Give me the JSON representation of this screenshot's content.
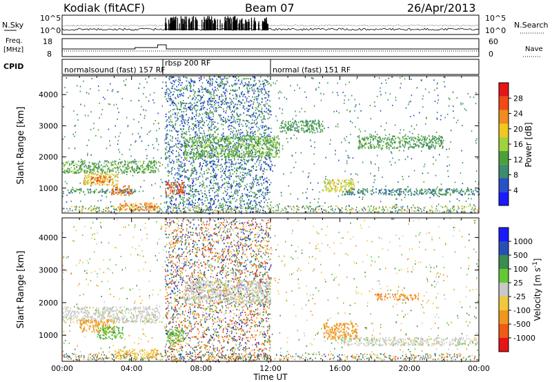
{
  "header": {
    "station": "Kodiak (fitACF)",
    "beam": "Beam 07",
    "date": "26/Apr/2013"
  },
  "sky_panel": {
    "left_label": "N.Sky",
    "right_label": "N.Search",
    "left_ticks": [
      "10^5",
      "10^0"
    ],
    "right_ticks": [
      "10^5",
      "10^0"
    ]
  },
  "freq_panel": {
    "left_label_1": "Freq.",
    "left_label_2": "[MHz]",
    "right_label": "Nave",
    "left_ticks": [
      "18",
      "8"
    ],
    "right_ticks": [
      "60",
      "0"
    ]
  },
  "cpid": {
    "label": "CPID",
    "segments": [
      {
        "name": "normalsound (fast) 157 RF",
        "start_hr": 0,
        "end_hr": 5.8
      },
      {
        "name": "rbsp 200 RF",
        "start_hr": 5.8,
        "end_hr": 12.0
      },
      {
        "name": "normal (fast) 151 RF",
        "start_hr": 12.0,
        "end_hr": 24.0
      }
    ]
  },
  "colors": {
    "power": [
      "#1a1aff",
      "#2850c8",
      "#3c8c6e",
      "#4ca03c",
      "#a0d23c",
      "#f0c81e",
      "#f08c1e",
      "#f04b14",
      "#e61414"
    ],
    "velocity": [
      "#e61414",
      "#f05a14",
      "#f0961e",
      "#f0c83c",
      "#c8c8c8",
      "#64c832",
      "#3c8c50",
      "#2850b4",
      "#1a1aff"
    ]
  },
  "power_colorbar": {
    "label": "Power [dB]",
    "ticks": [
      "28",
      "24",
      "20",
      "16",
      "12",
      "8",
      "4"
    ]
  },
  "velocity_colorbar": {
    "label": "Velocity [m s^-1]",
    "ticks": [
      "1000",
      "500",
      "100",
      "25",
      "-25",
      "-100",
      "-500",
      "-1000"
    ]
  },
  "chart_data": [
    {
      "type": "heatmap",
      "name": "power",
      "ylabel": "Slant Range [km]",
      "xlim": [
        0,
        24
      ],
      "ylim": [
        200,
        4600
      ],
      "yticks": [
        "1000",
        "2000",
        "3000",
        "4000"
      ],
      "zlim": [
        0,
        32
      ],
      "regions": [
        {
          "t0": 0.0,
          "t1": 5.6,
          "r0": 1500,
          "r1": 1900,
          "p": 12
        },
        {
          "t0": 1.2,
          "t1": 3.2,
          "r0": 1100,
          "r1": 1500,
          "p": 20
        },
        {
          "t0": 1.6,
          "t1": 2.8,
          "r0": 1200,
          "r1": 1400,
          "p": 27
        },
        {
          "t0": 0.0,
          "t1": 4.2,
          "r0": 850,
          "r1": 1000,
          "p": 9
        },
        {
          "t0": 2.8,
          "t1": 4.0,
          "r0": 800,
          "r1": 1100,
          "p": 26
        },
        {
          "t0": 3.2,
          "t1": 5.6,
          "r0": 300,
          "r1": 550,
          "p": 24
        },
        {
          "t0": 5.9,
          "t1": 7.0,
          "r0": 800,
          "r1": 1200,
          "p": 28
        },
        {
          "t0": 7.0,
          "t1": 12.5,
          "r0": 2000,
          "r1": 2700,
          "p": 13
        },
        {
          "t0": 12.5,
          "t1": 15.0,
          "r0": 2800,
          "r1": 3200,
          "p": 10
        },
        {
          "t0": 15.0,
          "t1": 16.8,
          "r0": 900,
          "r1": 1300,
          "p": 19
        },
        {
          "t0": 16.0,
          "t1": 24.0,
          "r0": 800,
          "r1": 1000,
          "p": 8
        },
        {
          "t0": 17.0,
          "t1": 22.0,
          "r0": 2300,
          "r1": 2700,
          "p": 11
        }
      ]
    },
    {
      "type": "heatmap",
      "name": "velocity",
      "xlabel": "Time UT",
      "ylabel": "Slant Range [km]",
      "xlim": [
        0,
        24
      ],
      "ylim": [
        200,
        4600
      ],
      "xticks": [
        "00:00",
        "04:00",
        "08:00",
        "12:00",
        "16:00",
        "20:00",
        "00:00"
      ],
      "yticks": [
        "1000",
        "2000",
        "3000",
        "4000"
      ],
      "regions": [
        {
          "t0": 0.0,
          "t1": 5.6,
          "r0": 1400,
          "r1": 1900,
          "v": 0
        },
        {
          "t0": 1.0,
          "t1": 3.0,
          "r0": 1100,
          "r1": 1500,
          "v": -150
        },
        {
          "t0": 2.0,
          "t1": 3.5,
          "r0": 900,
          "r1": 1300,
          "v": 80
        },
        {
          "t0": 3.0,
          "t1": 5.5,
          "r0": 300,
          "r1": 600,
          "v": -80
        },
        {
          "t0": 6.0,
          "t1": 7.0,
          "r0": 800,
          "r1": 1200,
          "v": 60
        },
        {
          "t0": 7.0,
          "t1": 12.0,
          "r0": 2000,
          "r1": 2700,
          "v": 0
        },
        {
          "t0": 15.0,
          "t1": 17.0,
          "r0": 900,
          "r1": 1400,
          "v": -250
        },
        {
          "t0": 16.0,
          "t1": 24.0,
          "r0": 700,
          "r1": 950,
          "v": 0
        },
        {
          "t0": 18.0,
          "t1": 20.5,
          "r0": 2100,
          "r1": 2300,
          "v": -400
        }
      ]
    }
  ]
}
